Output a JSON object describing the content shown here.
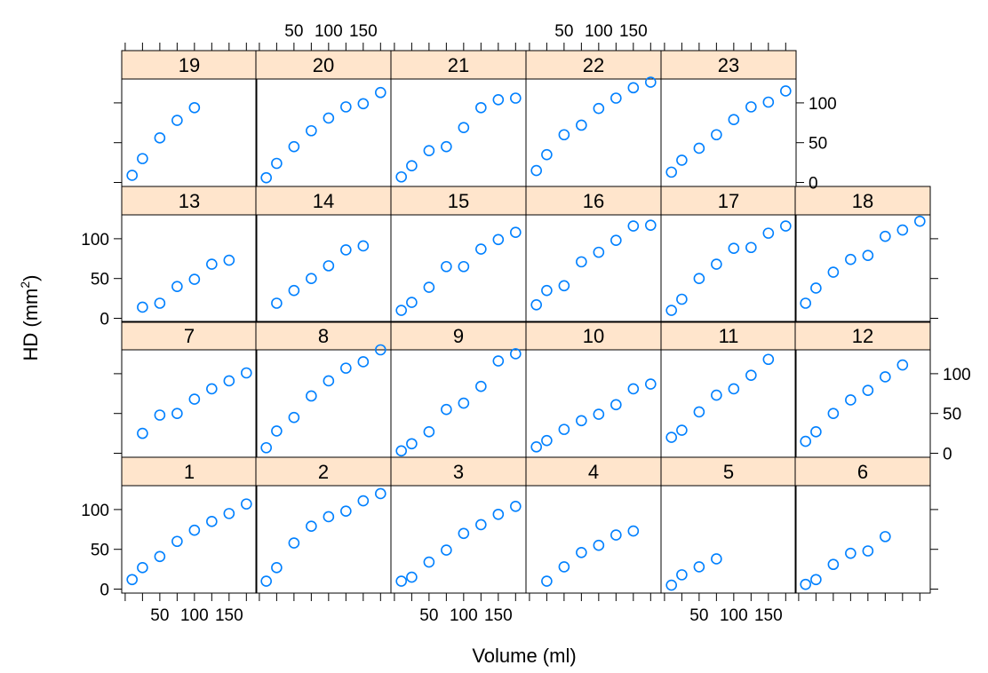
{
  "chart_data": {
    "type": "scatter",
    "xlabel": "Volume (ml)",
    "ylabel": "HD",
    "ylabel_unit": "(mm",
    "ylabel_unit_sup": "2",
    "ylabel_unit_close": ")",
    "xlim": [
      -5,
      190
    ],
    "ylim": [
      -5,
      130
    ],
    "x_ticks": [
      50,
      100,
      150
    ],
    "x_tick_labels": [
      "50",
      "100",
      "150"
    ],
    "y_ticks": [
      0,
      50,
      100
    ],
    "y_tick_labels": [
      "0",
      "50",
      "100"
    ],
    "grid": false,
    "layout": {
      "columns": 6,
      "rows": 4
    },
    "colors": {
      "points": "#0080ff",
      "strip": "#ffe5cc",
      "axis": "#000000"
    },
    "panels": [
      {
        "id": "1",
        "label": "1",
        "points": [
          [
            10,
            12
          ],
          [
            25,
            27
          ],
          [
            50,
            41
          ],
          [
            75,
            60
          ],
          [
            100,
            74
          ],
          [
            125,
            85
          ],
          [
            150,
            95
          ],
          [
            175,
            107
          ]
        ]
      },
      {
        "id": "2",
        "label": "2",
        "points": [
          [
            10,
            10
          ],
          [
            25,
            27
          ],
          [
            50,
            58
          ],
          [
            75,
            79
          ],
          [
            100,
            91
          ],
          [
            125,
            98
          ],
          [
            150,
            111
          ],
          [
            175,
            120
          ]
        ]
      },
      {
        "id": "3",
        "label": "3",
        "points": [
          [
            10,
            10
          ],
          [
            25,
            15
          ],
          [
            50,
            34
          ],
          [
            75,
            49
          ],
          [
            100,
            70
          ],
          [
            125,
            81
          ],
          [
            150,
            94
          ],
          [
            175,
            104
          ]
        ]
      },
      {
        "id": "4",
        "label": "4",
        "points": [
          [
            25,
            10
          ],
          [
            50,
            28
          ],
          [
            75,
            46
          ],
          [
            100,
            55
          ],
          [
            125,
            68
          ],
          [
            150,
            73
          ]
        ]
      },
      {
        "id": "5",
        "label": "5",
        "points": [
          [
            10,
            5
          ],
          [
            25,
            18
          ],
          [
            50,
            28
          ],
          [
            75,
            38
          ]
        ]
      },
      {
        "id": "6",
        "label": "6",
        "points": [
          [
            10,
            6
          ],
          [
            25,
            12
          ],
          [
            50,
            31
          ],
          [
            75,
            45
          ],
          [
            100,
            48
          ],
          [
            125,
            66
          ]
        ]
      },
      {
        "id": "7",
        "label": "7",
        "points": [
          [
            25,
            25
          ],
          [
            50,
            48
          ],
          [
            75,
            50
          ],
          [
            100,
            68
          ],
          [
            125,
            81
          ],
          [
            150,
            91
          ],
          [
            175,
            101
          ]
        ]
      },
      {
        "id": "8",
        "label": "8",
        "points": [
          [
            10,
            7
          ],
          [
            25,
            28
          ],
          [
            50,
            45
          ],
          [
            75,
            72
          ],
          [
            100,
            91
          ],
          [
            125,
            107
          ],
          [
            150,
            115
          ],
          [
            175,
            130
          ]
        ]
      },
      {
        "id": "9",
        "label": "9",
        "points": [
          [
            10,
            3
          ],
          [
            25,
            12
          ],
          [
            50,
            27
          ],
          [
            75,
            55
          ],
          [
            100,
            63
          ],
          [
            125,
            84
          ],
          [
            150,
            116
          ],
          [
            175,
            125
          ]
        ]
      },
      {
        "id": "10",
        "label": "10",
        "points": [
          [
            10,
            8
          ],
          [
            25,
            16
          ],
          [
            50,
            30
          ],
          [
            75,
            41
          ],
          [
            100,
            49
          ],
          [
            125,
            61
          ],
          [
            150,
            81
          ],
          [
            175,
            87
          ]
        ]
      },
      {
        "id": "11",
        "label": "11",
        "points": [
          [
            10,
            20
          ],
          [
            25,
            29
          ],
          [
            50,
            52
          ],
          [
            75,
            73
          ],
          [
            100,
            81
          ],
          [
            125,
            98
          ],
          [
            150,
            118
          ]
        ]
      },
      {
        "id": "12",
        "label": "12",
        "points": [
          [
            10,
            15
          ],
          [
            25,
            27
          ],
          [
            50,
            50
          ],
          [
            75,
            67
          ],
          [
            100,
            79
          ],
          [
            125,
            96
          ],
          [
            150,
            111
          ]
        ]
      },
      {
        "id": "13",
        "label": "13",
        "points": [
          [
            25,
            14
          ],
          [
            50,
            19
          ],
          [
            75,
            40
          ],
          [
            100,
            49
          ],
          [
            125,
            68
          ],
          [
            150,
            73
          ]
        ]
      },
      {
        "id": "14",
        "label": "14",
        "points": [
          [
            25,
            19
          ],
          [
            50,
            35
          ],
          [
            75,
            50
          ],
          [
            100,
            66
          ],
          [
            125,
            86
          ],
          [
            150,
            91
          ]
        ]
      },
      {
        "id": "15",
        "label": "15",
        "points": [
          [
            10,
            10
          ],
          [
            25,
            20
          ],
          [
            50,
            39
          ],
          [
            75,
            65
          ],
          [
            100,
            65
          ],
          [
            125,
            87
          ],
          [
            150,
            99
          ],
          [
            175,
            108
          ]
        ]
      },
      {
        "id": "16",
        "label": "16",
        "points": [
          [
            10,
            17
          ],
          [
            25,
            35
          ],
          [
            50,
            41
          ],
          [
            75,
            71
          ],
          [
            100,
            83
          ],
          [
            125,
            98
          ],
          [
            150,
            116
          ],
          [
            175,
            117
          ]
        ]
      },
      {
        "id": "17",
        "label": "17",
        "points": [
          [
            10,
            10
          ],
          [
            25,
            24
          ],
          [
            50,
            50
          ],
          [
            75,
            68
          ],
          [
            100,
            88
          ],
          [
            125,
            89
          ],
          [
            150,
            107
          ],
          [
            175,
            116
          ]
        ]
      },
      {
        "id": "18",
        "label": "18",
        "points": [
          [
            10,
            19
          ],
          [
            25,
            38
          ],
          [
            50,
            58
          ],
          [
            75,
            74
          ],
          [
            100,
            79
          ],
          [
            125,
            103
          ],
          [
            150,
            111
          ],
          [
            175,
            122
          ]
        ]
      },
      {
        "id": "19",
        "label": "19",
        "points": [
          [
            10,
            9
          ],
          [
            25,
            30
          ],
          [
            50,
            56
          ],
          [
            75,
            78
          ],
          [
            100,
            94
          ]
        ]
      },
      {
        "id": "20",
        "label": "20",
        "points": [
          [
            10,
            6
          ],
          [
            25,
            24
          ],
          [
            50,
            45
          ],
          [
            75,
            65
          ],
          [
            100,
            81
          ],
          [
            125,
            95
          ],
          [
            150,
            99
          ],
          [
            175,
            113
          ]
        ]
      },
      {
        "id": "21",
        "label": "21",
        "points": [
          [
            10,
            7
          ],
          [
            25,
            21
          ],
          [
            50,
            40
          ],
          [
            75,
            45
          ],
          [
            100,
            69
          ],
          [
            125,
            94
          ],
          [
            150,
            104
          ],
          [
            175,
            106
          ]
        ]
      },
      {
        "id": "22",
        "label": "22",
        "points": [
          [
            10,
            15
          ],
          [
            25,
            35
          ],
          [
            50,
            60
          ],
          [
            75,
            72
          ],
          [
            100,
            93
          ],
          [
            125,
            106
          ],
          [
            150,
            119
          ],
          [
            175,
            126
          ]
        ]
      },
      {
        "id": "23",
        "label": "23",
        "points": [
          [
            10,
            13
          ],
          [
            25,
            28
          ],
          [
            50,
            43
          ],
          [
            75,
            60
          ],
          [
            100,
            79
          ],
          [
            125,
            95
          ],
          [
            150,
            101
          ],
          [
            175,
            115
          ]
        ]
      }
    ]
  }
}
